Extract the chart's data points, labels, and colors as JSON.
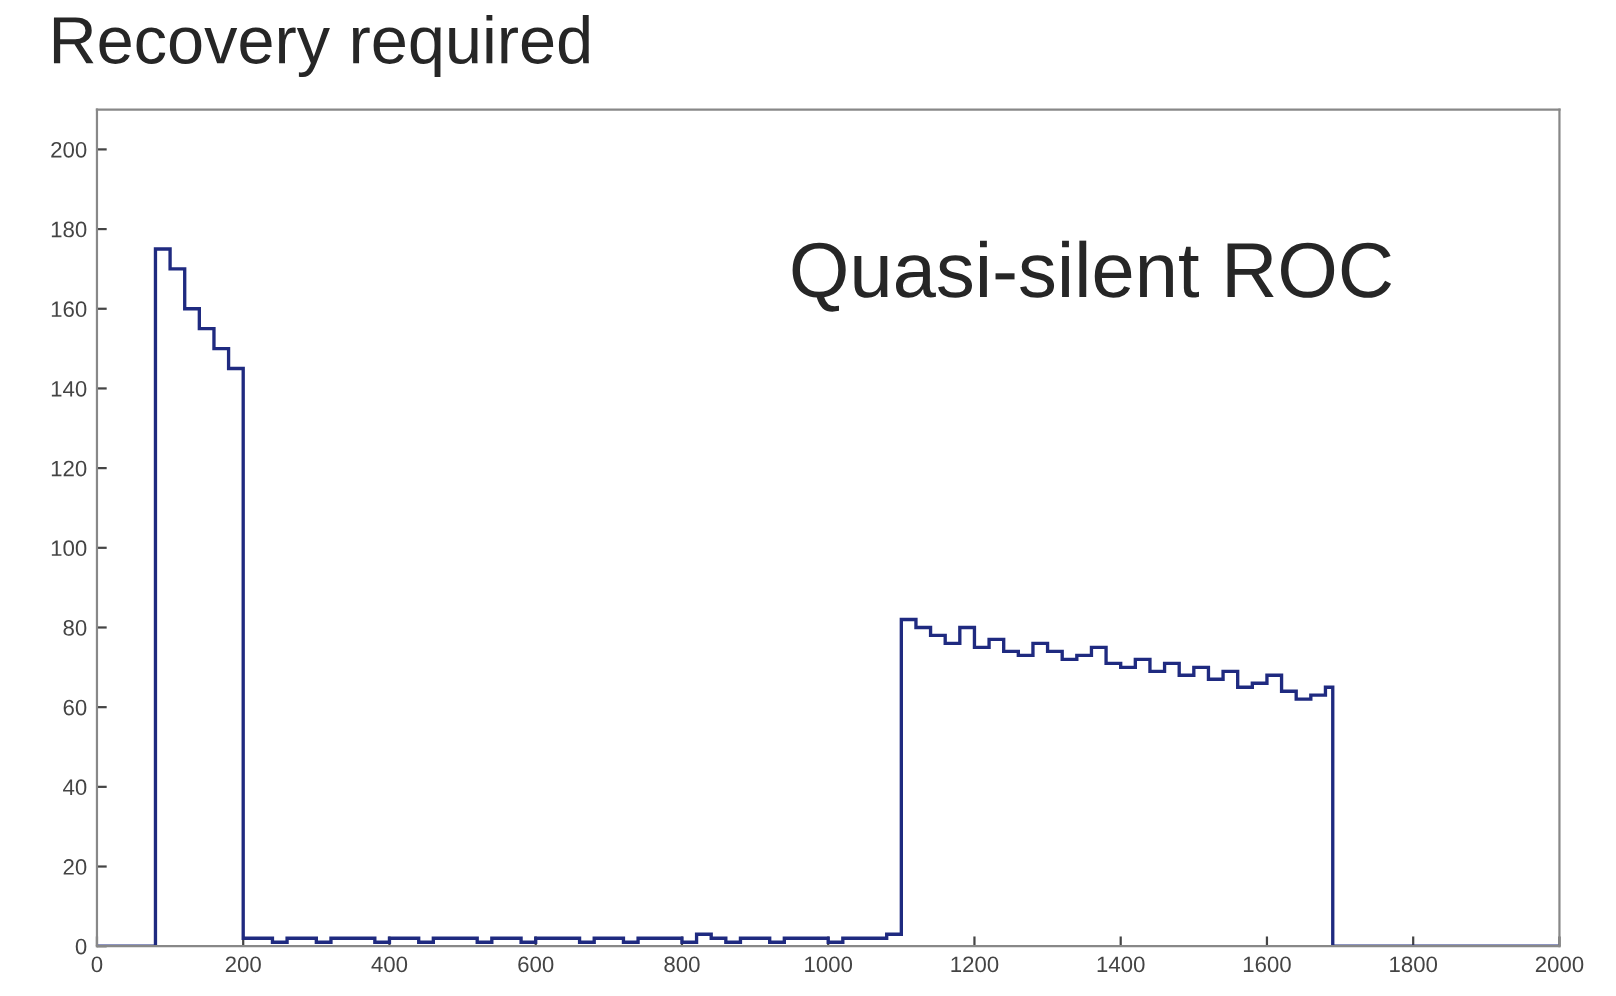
{
  "chart_data": {
    "type": "histogram",
    "title": "Recovery required",
    "annotations": [
      "Quasi-silent ROC"
    ],
    "bins": [
      0,
      80,
      100,
      120,
      140,
      160,
      180,
      200,
      220,
      240,
      260,
      280,
      300,
      320,
      340,
      360,
      380,
      400,
      420,
      440,
      460,
      480,
      500,
      520,
      540,
      560,
      580,
      600,
      620,
      640,
      660,
      680,
      700,
      720,
      740,
      760,
      780,
      800,
      820,
      840,
      860,
      880,
      900,
      920,
      940,
      960,
      980,
      1000,
      1020,
      1040,
      1060,
      1080,
      1100,
      1120,
      1140,
      1160,
      1180,
      1200,
      1220,
      1240,
      1260,
      1280,
      1300,
      1320,
      1340,
      1360,
      1380,
      1400,
      1420,
      1440,
      1460,
      1480,
      1500,
      1520,
      1540,
      1560,
      1580,
      1600,
      1620,
      1640,
      1660,
      1680,
      1690,
      2000
    ],
    "values": [
      0,
      175,
      170,
      160,
      155,
      150,
      145,
      2,
      2,
      1,
      2,
      2,
      1,
      2,
      2,
      2,
      1,
      2,
      2,
      1,
      2,
      2,
      2,
      1,
      2,
      2,
      1,
      2,
      2,
      2,
      1,
      2,
      2,
      1,
      2,
      2,
      2,
      1,
      3,
      2,
      1,
      2,
      2,
      1,
      2,
      2,
      2,
      1,
      2,
      2,
      2,
      3,
      82,
      80,
      78,
      76,
      80,
      75,
      77,
      74,
      73,
      76,
      74,
      72,
      73,
      75,
      71,
      70,
      72,
      69,
      71,
      68,
      70,
      67,
      69,
      65,
      66,
      68,
      64,
      62,
      63,
      65,
      0
    ],
    "color": "#1f2a80",
    "xlim": [
      0,
      2000
    ],
    "xticks": [
      0,
      200,
      400,
      600,
      800,
      1000,
      1200,
      1400,
      1600,
      1800,
      2000
    ],
    "ylim": [
      0,
      210
    ],
    "yticks": [
      0,
      20,
      40,
      60,
      80,
      100,
      120,
      140,
      160,
      180,
      200
    ],
    "grid": false,
    "legend": false
  }
}
